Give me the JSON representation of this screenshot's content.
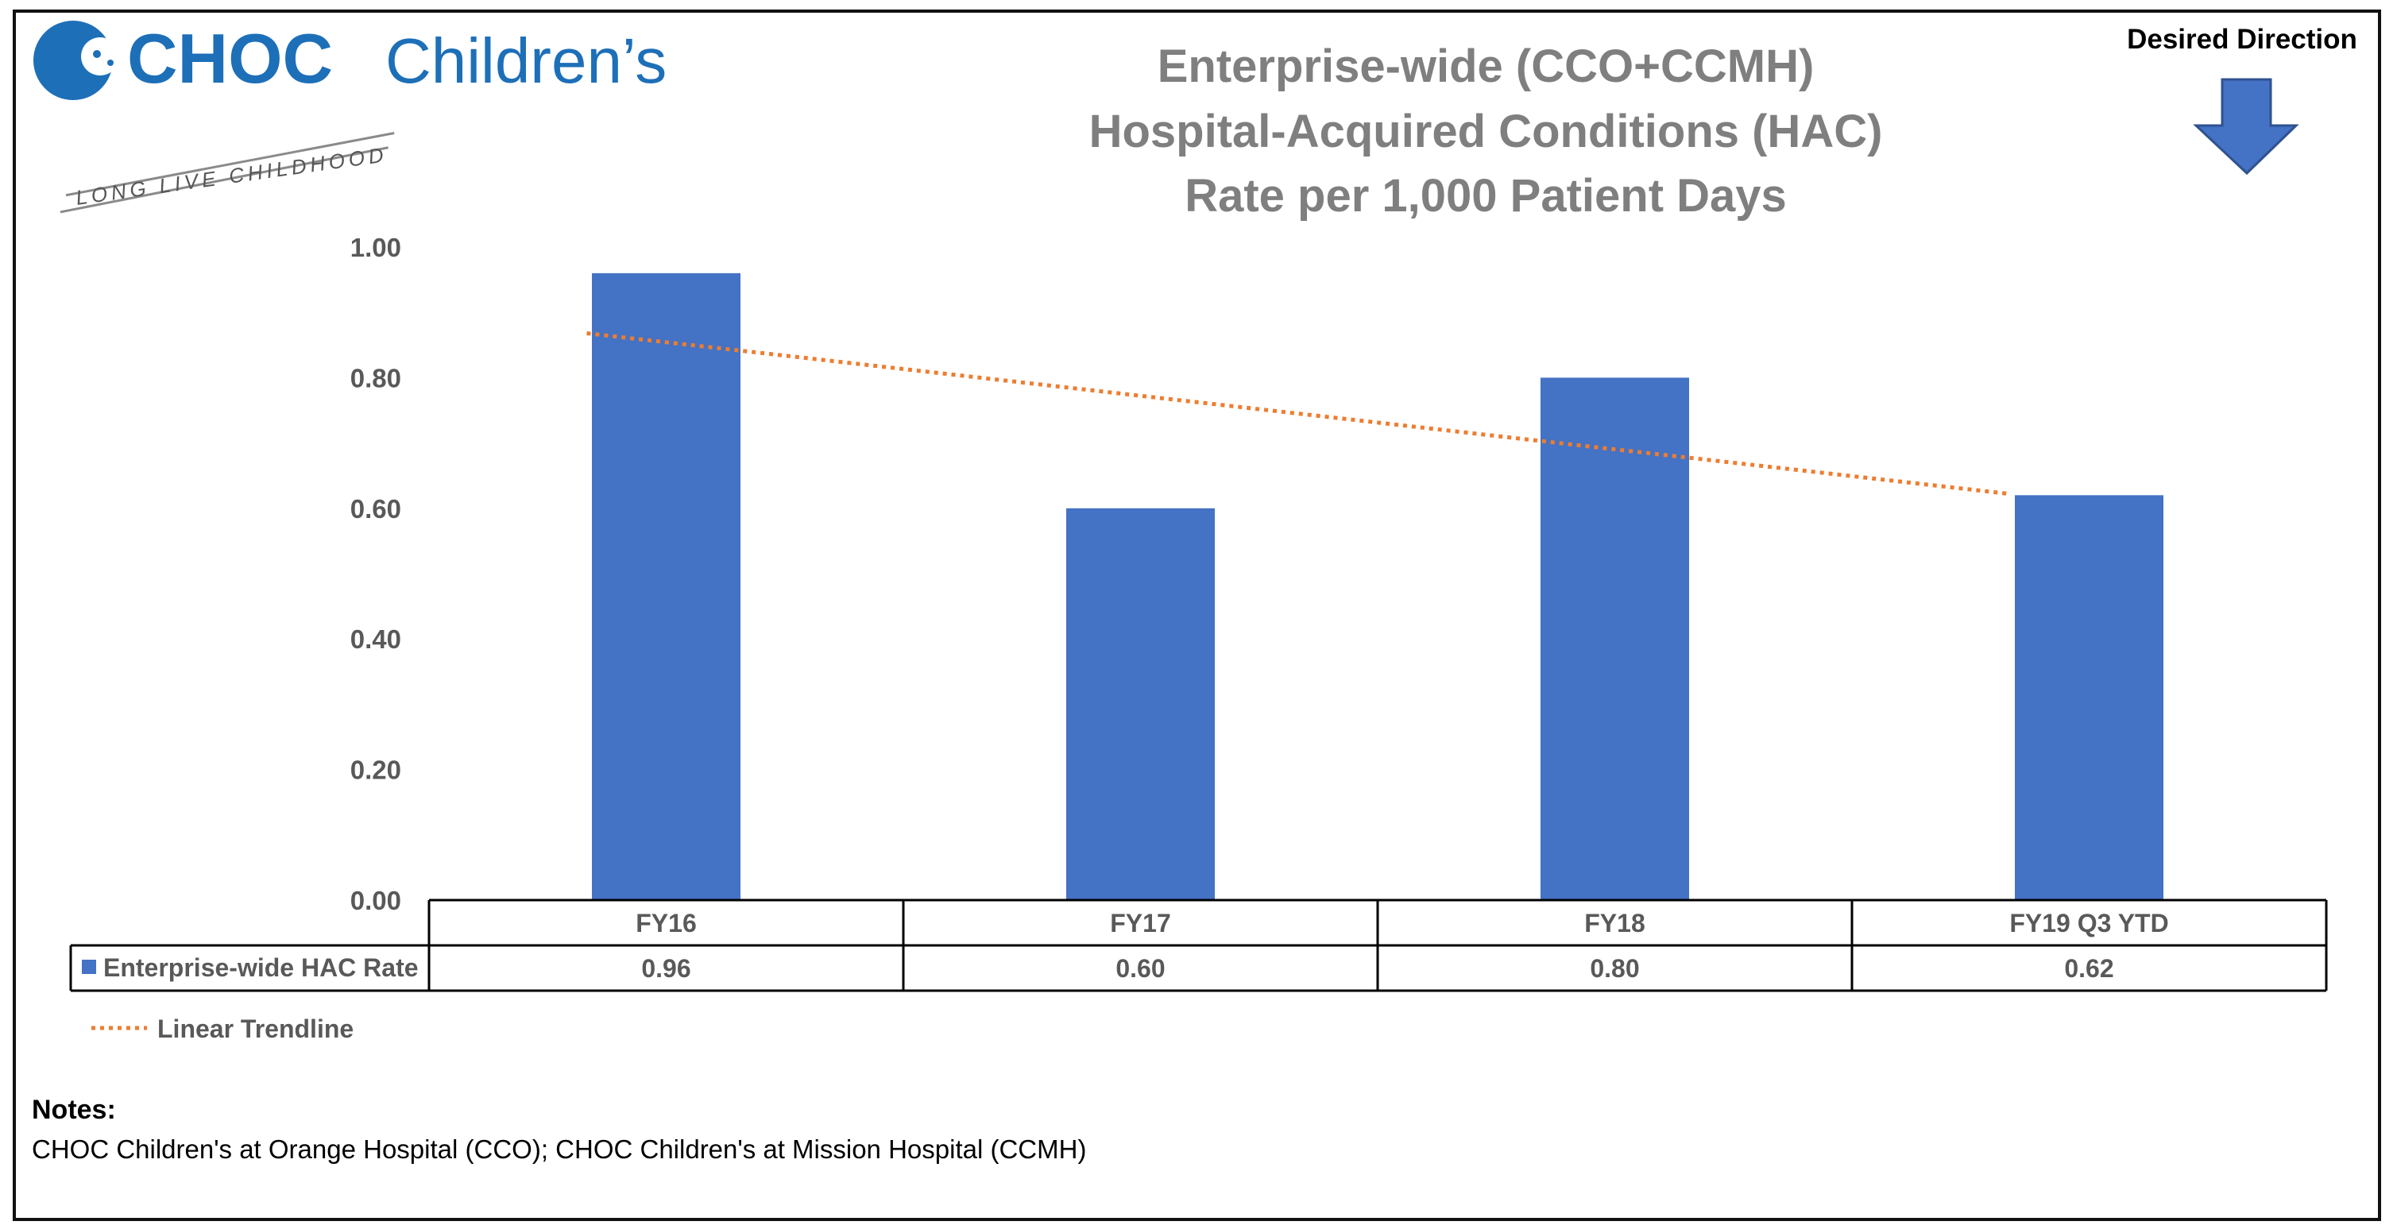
{
  "logo": {
    "brand": "CHOC",
    "brand_suffix": "Children’s",
    "tagline": "LONG LIVE CHILDHOOD"
  },
  "desired_direction": {
    "label": "Desired Direction",
    "icon": "down-arrow-icon"
  },
  "colors": {
    "bar": "#4472C4",
    "trendline": "#ED7D31",
    "brand": "#1D6FB8",
    "title": "#7F7F7F",
    "axis_text": "#595959"
  },
  "chart_data": {
    "type": "bar",
    "title": [
      "Enterprise-wide (CCO+CCMH)",
      "Hospital-Acquired Conditions (HAC)",
      "Rate per 1,000 Patient Days"
    ],
    "categories": [
      "FY16",
      "FY17",
      "FY18",
      "FY19 Q3 YTD"
    ],
    "series": [
      {
        "name": "Enterprise-wide HAC Rate",
        "values": [
          0.96,
          0.6,
          0.8,
          0.62
        ],
        "value_labels": [
          "0.96",
          "0.60",
          "0.80",
          "0.62"
        ]
      }
    ],
    "trendline": {
      "name": "Linear Trendline",
      "type": "linear"
    },
    "ylim": [
      0,
      1.0
    ],
    "yticks": [
      "0.00",
      "0.20",
      "0.40",
      "0.60",
      "0.80",
      "1.00"
    ],
    "xlabel": "",
    "ylabel": "",
    "grid": false,
    "data_table": true
  },
  "notes": {
    "title": "Notes:",
    "text": "CHOC Children's at Orange Hospital (CCO); CHOC Children's at Mission Hospital (CCMH)"
  }
}
